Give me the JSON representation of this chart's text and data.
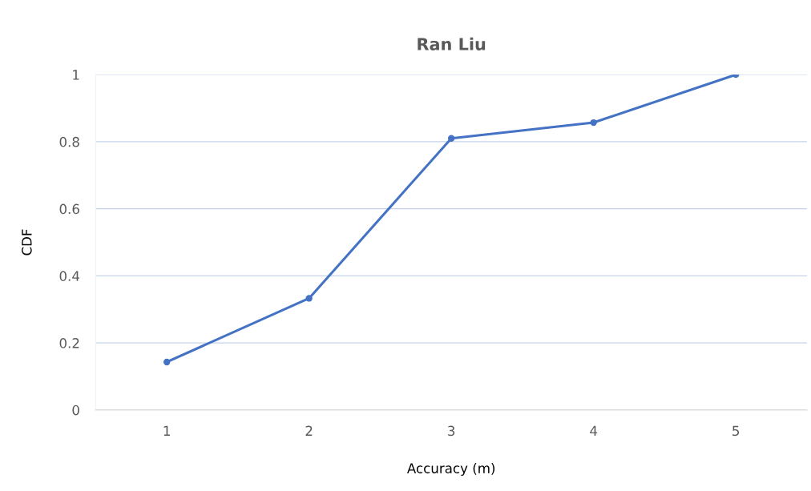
{
  "chart_data": {
    "type": "line",
    "title": "Ran Liu",
    "xlabel": "Accuracy (m)",
    "ylabel": "CDF",
    "categories": [
      "1",
      "2",
      "3",
      "4",
      "5"
    ],
    "series": [
      {
        "color": "#4472c4",
        "values": [
          0.143,
          0.333,
          0.81,
          0.857,
          1.0
        ]
      }
    ],
    "ylim": [
      0,
      1
    ],
    "yticks": [
      0,
      0.2,
      0.4,
      0.6,
      0.8,
      1
    ],
    "grid": "y",
    "marker": "circle",
    "line_style": "solid",
    "legend": false
  }
}
